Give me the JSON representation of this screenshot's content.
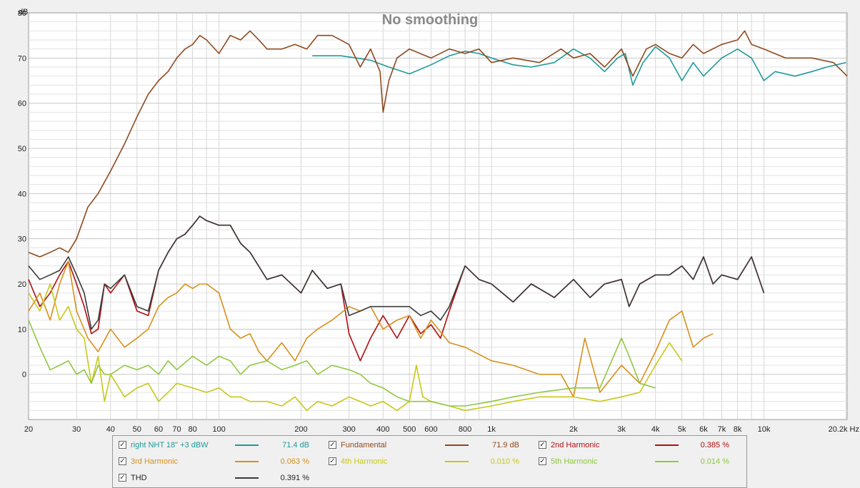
{
  "chart_data": {
    "type": "line",
    "title": "No smoothing",
    "x_unit_label": "dB",
    "x_scale": "log",
    "xlim": [
      20,
      20200
    ],
    "ylim": [
      -10,
      80
    ],
    "y_ticks": [
      0,
      10,
      20,
      30,
      40,
      50,
      60,
      70,
      80
    ],
    "y_tick_labels": [
      "0",
      "10",
      "20",
      "30",
      "40",
      "50",
      "60",
      "70",
      "80"
    ],
    "y_axis_unit": "dB",
    "x_ticks": [
      20,
      30,
      40,
      50,
      60,
      70,
      80,
      100,
      200,
      300,
      400,
      500,
      600,
      800,
      1000,
      2000,
      3000,
      4000,
      5000,
      6000,
      7000,
      8000,
      10000,
      20200
    ],
    "x_tick_labels": [
      "20",
      "30",
      "40",
      "50",
      "60",
      "70",
      "80",
      "100",
      "200",
      "300",
      "400",
      "500",
      "600",
      "800",
      "1k",
      "2k",
      "3k",
      "4k",
      "5k",
      "6k",
      "7k",
      "8k",
      "10k",
      "20.2k Hz"
    ],
    "grid": true,
    "legend_position": "bottom",
    "series": [
      {
        "name": "right NHT 18\" +3 dBW",
        "color": "#1f9a9a",
        "value": "71.4 dB",
        "x": [
          220,
          280,
          320,
          360,
          420,
          500,
          600,
          700,
          800,
          900,
          1000,
          1200,
          1400,
          1700,
          2000,
          2300,
          2600,
          2900,
          3100,
          3300,
          3600,
          4000,
          4500,
          5000,
          5500,
          6000,
          7000,
          8000,
          9000,
          10000,
          11000,
          13000,
          15000,
          17000,
          20000
        ],
        "y": [
          70.5,
          70.5,
          70,
          69.5,
          68,
          66.5,
          68.5,
          70.5,
          71.5,
          71,
          70,
          68.5,
          68,
          69,
          72,
          70,
          67,
          70,
          71,
          64,
          69,
          72.5,
          70,
          65,
          69,
          66,
          70,
          72,
          70,
          65,
          67,
          66,
          67,
          68,
          69
        ]
      },
      {
        "name": "Fundamental",
        "color": "#8e4a1e",
        "value": "71.9 dB",
        "x": [
          20,
          22,
          24,
          26,
          28,
          30,
          33,
          36,
          40,
          45,
          50,
          55,
          60,
          65,
          70,
          75,
          80,
          85,
          90,
          100,
          110,
          120,
          130,
          140,
          150,
          170,
          190,
          210,
          230,
          260,
          300,
          330,
          360,
          390,
          400,
          420,
          450,
          500,
          600,
          700,
          800,
          900,
          1000,
          1200,
          1500,
          1800,
          2000,
          2300,
          2600,
          3000,
          3300,
          3700,
          4000,
          4500,
          5000,
          5500,
          6000,
          7000,
          8000,
          8500,
          9000,
          10000,
          12000,
          15000,
          18000,
          20200
        ],
        "y": [
          27,
          26,
          27,
          28,
          27,
          30,
          37,
          40,
          45,
          51,
          57,
          62,
          65,
          67,
          70,
          72,
          73,
          75,
          74,
          71,
          75,
          74,
          76,
          74,
          72,
          72,
          73,
          72,
          75,
          75,
          73,
          68,
          72,
          67,
          58,
          65,
          70,
          72,
          70,
          72,
          71,
          72,
          69,
          70,
          69,
          72,
          70,
          71,
          68,
          72,
          66,
          72,
          73,
          71,
          70,
          73,
          71,
          73,
          74,
          76,
          73,
          72,
          70,
          70,
          69,
          66
        ]
      },
      {
        "name": "2nd Harmonic",
        "color": "#b01010",
        "value": "0.385 %",
        "x": [
          20,
          22,
          24,
          26,
          28,
          30,
          32,
          34,
          36,
          38,
          40,
          45,
          50,
          55,
          60,
          65,
          70,
          75,
          80,
          85,
          90,
          100,
          110,
          120,
          130,
          150,
          170,
          200,
          220,
          250,
          280,
          300,
          330,
          360,
          400,
          450,
          500,
          550,
          600,
          650,
          700,
          800,
          900,
          1000,
          1200,
          1400,
          1700,
          2000,
          2300,
          2600,
          3000,
          3200,
          3500,
          4000,
          4500,
          5000,
          5500,
          6000,
          6500,
          7000,
          8000,
          9000,
          10000
        ],
        "y": [
          21,
          15,
          18,
          22,
          25,
          20,
          15,
          9,
          10,
          20,
          18,
          22,
          14,
          13,
          23,
          27,
          30,
          31,
          33,
          35,
          34,
          33,
          33,
          29,
          27,
          21,
          22,
          18,
          23,
          19,
          20,
          9,
          3,
          8,
          13,
          8,
          13,
          9,
          11,
          8,
          14,
          24,
          21,
          20,
          16,
          20,
          17,
          21,
          17,
          20,
          21,
          15,
          20,
          22,
          22,
          24,
          21,
          26,
          20,
          22,
          21,
          26,
          18
        ]
      },
      {
        "name": "3rd Harmonic",
        "color": "#d8901a",
        "value": "0.063 %",
        "x": [
          20,
          22,
          24,
          26,
          28,
          30,
          33,
          36,
          40,
          45,
          50,
          55,
          60,
          65,
          70,
          75,
          80,
          85,
          90,
          100,
          110,
          120,
          130,
          140,
          150,
          170,
          190,
          210,
          230,
          260,
          300,
          330,
          360,
          400,
          450,
          500,
          550,
          600,
          700,
          800,
          1000,
          1200,
          1500,
          1800,
          2000,
          2200,
          2500,
          3000,
          3500,
          4000,
          4500,
          5000,
          5500,
          6000,
          6500
        ],
        "y": [
          14,
          18,
          12,
          20,
          25,
          14,
          8,
          5,
          10,
          6,
          8,
          10,
          15,
          17,
          18,
          20,
          19,
          20,
          20,
          18,
          10,
          8,
          9,
          5,
          3,
          7,
          3,
          8,
          10,
          12,
          15,
          14,
          15,
          10,
          12,
          13,
          8,
          12,
          7,
          6,
          3,
          2,
          0,
          0,
          -5,
          8,
          -4,
          2,
          -2,
          5,
          12,
          14,
          6,
          8,
          9
        ]
      },
      {
        "name": "4th Harmonic",
        "color": "#c8c81a",
        "value": "0.010 %",
        "x": [
          20,
          22,
          24,
          26,
          28,
          30,
          32,
          34,
          36,
          38,
          40,
          45,
          50,
          55,
          60,
          65,
          70,
          80,
          90,
          100,
          110,
          120,
          130,
          150,
          170,
          190,
          210,
          230,
          260,
          300,
          330,
          360,
          400,
          450,
          500,
          530,
          560,
          600,
          700,
          800,
          1000,
          1200,
          1500,
          2000,
          2500,
          3000,
          3500,
          4000,
          4500,
          5000
        ],
        "y": [
          18,
          14,
          20,
          12,
          15,
          10,
          8,
          -2,
          4,
          -6,
          0,
          -5,
          -3,
          -2,
          -6,
          -4,
          -2,
          -3,
          -4,
          -3,
          -5,
          -5,
          -6,
          -6,
          -7,
          -5,
          -8,
          -6,
          -7,
          -5,
          -6,
          -7,
          -6,
          -8,
          -6,
          2,
          -5,
          -6,
          -7,
          -8,
          -7,
          -6,
          -5,
          -5,
          -6,
          -5,
          -4,
          2,
          7,
          3
        ]
      },
      {
        "name": "5th Harmonic",
        "color": "#90c840",
        "value": "0.014 %",
        "x": [
          20,
          22,
          24,
          26,
          28,
          30,
          32,
          34,
          36,
          38,
          40,
          45,
          50,
          55,
          60,
          65,
          70,
          80,
          90,
          100,
          110,
          120,
          130,
          150,
          170,
          190,
          210,
          230,
          260,
          300,
          330,
          360,
          400,
          450,
          500,
          600,
          700,
          800,
          1000,
          1200,
          1500,
          2000,
          2500,
          3000,
          3200,
          3500,
          4000
        ],
        "y": [
          12,
          6,
          1,
          2,
          3,
          0,
          1,
          -2,
          2,
          0,
          0,
          2,
          1,
          2,
          0,
          3,
          1,
          4,
          2,
          4,
          3,
          0,
          2,
          3,
          1,
          2,
          3,
          0,
          2,
          1,
          0,
          -2,
          -3,
          -5,
          -6,
          -6,
          -7,
          -7,
          -6,
          -5,
          -4,
          -3,
          -3,
          8,
          4,
          -2,
          -3
        ]
      },
      {
        "name": "THD",
        "color": "#3a3a3a",
        "value": "0.391 %",
        "x": [
          20,
          22,
          24,
          26,
          28,
          30,
          32,
          34,
          36,
          38,
          40,
          45,
          50,
          55,
          60,
          65,
          70,
          75,
          80,
          85,
          90,
          100,
          110,
          120,
          130,
          150,
          170,
          200,
          220,
          250,
          280,
          300,
          330,
          360,
          400,
          450,
          500,
          550,
          600,
          650,
          700,
          800,
          900,
          1000,
          1200,
          1400,
          1700,
          2000,
          2300,
          2600,
          3000,
          3200,
          3500,
          4000,
          4500,
          5000,
          5500,
          6000,
          6500,
          7000,
          8000,
          9000,
          10000
        ],
        "y": [
          24,
          21,
          22,
          23,
          26,
          22,
          18,
          10,
          12,
          20,
          19,
          22,
          15,
          14,
          23,
          27,
          30,
          31,
          33,
          35,
          34,
          33,
          33,
          29,
          27,
          21,
          22,
          18,
          23,
          19,
          20,
          13,
          14,
          15,
          15,
          15,
          15,
          13,
          14,
          12,
          15,
          24,
          21,
          20,
          16,
          20,
          17,
          21,
          17,
          20,
          21,
          15,
          20,
          22,
          22,
          24,
          21,
          26,
          20,
          22,
          21,
          26,
          18
        ]
      }
    ]
  }
}
